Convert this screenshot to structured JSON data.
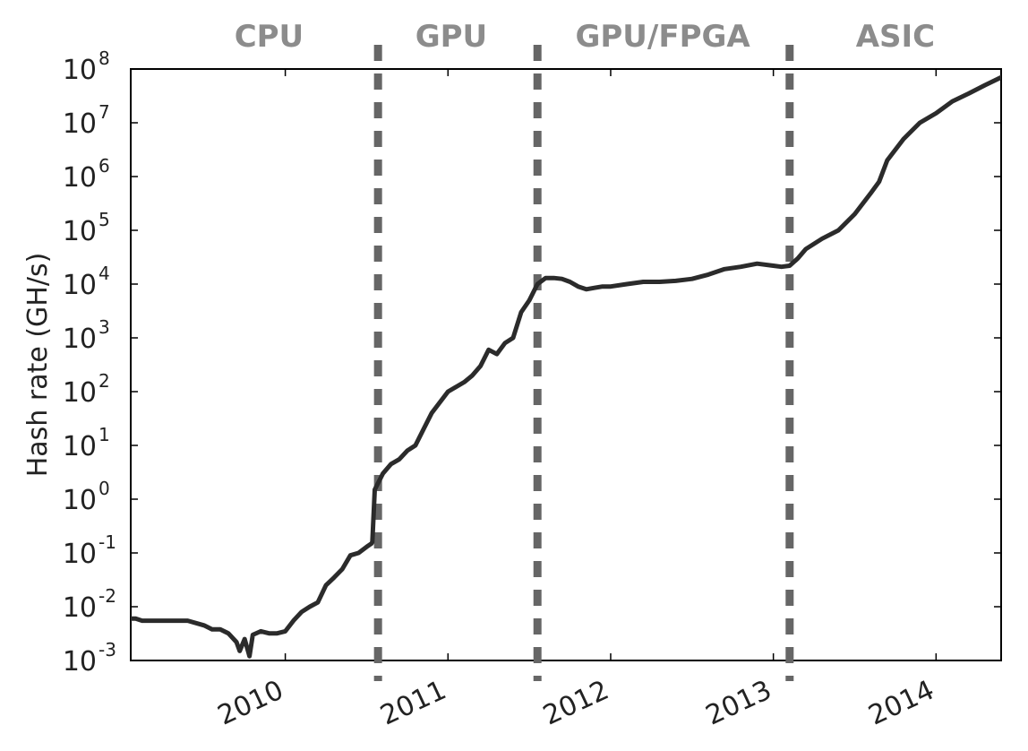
{
  "chart_data": {
    "type": "line",
    "title": "",
    "xlabel": "",
    "ylabel": "Hash rate (GH/s)",
    "yscale": "log",
    "ylim": [
      0.001,
      100000000
    ],
    "xlim": [
      2009.05,
      2014.4
    ],
    "x_ticks": [
      2010,
      2011,
      2012,
      2013,
      2014
    ],
    "x_tick_labels": [
      "2010",
      "2011",
      "2012",
      "2013",
      "2014"
    ],
    "y_ticks": [
      {
        "value": 0.001,
        "base": "10",
        "exp": "-3"
      },
      {
        "value": 0.01,
        "base": "10",
        "exp": "-2"
      },
      {
        "value": 0.1,
        "base": "10",
        "exp": "-1"
      },
      {
        "value": 1,
        "base": "10",
        "exp": "0"
      },
      {
        "value": 10,
        "base": "10",
        "exp": "1"
      },
      {
        "value": 100,
        "base": "10",
        "exp": "2"
      },
      {
        "value": 1000,
        "base": "10",
        "exp": "3"
      },
      {
        "value": 10000,
        "base": "10",
        "exp": "4"
      },
      {
        "value": 100000,
        "base": "10",
        "exp": "5"
      },
      {
        "value": 1000000,
        "base": "10",
        "exp": "6"
      },
      {
        "value": 10000000,
        "base": "10",
        "exp": "7"
      },
      {
        "value": 100000000,
        "base": "10",
        "exp": "8"
      }
    ],
    "era_dividers": [
      2010.57,
      2011.55,
      2013.1
    ],
    "eras": [
      {
        "label": "CPU",
        "center": 2009.9
      },
      {
        "label": "GPU",
        "center": 2011.02
      },
      {
        "label": "GPU/FPGA",
        "center": 2012.32
      },
      {
        "label": "ASIC",
        "center": 2013.75
      }
    ],
    "series": [
      {
        "name": "Hash rate",
        "color": "#2b2b2b",
        "x": [
          2009.0,
          2009.02,
          2009.05,
          2009.08,
          2009.12,
          2009.2,
          2009.3,
          2009.4,
          2009.5,
          2009.55,
          2009.6,
          2009.65,
          2009.7,
          2009.72,
          2009.75,
          2009.78,
          2009.8,
          2009.85,
          2009.9,
          2009.95,
          2010.0,
          2010.05,
          2010.1,
          2010.15,
          2010.2,
          2010.25,
          2010.3,
          2010.35,
          2010.4,
          2010.45,
          2010.5,
          2010.53,
          2010.535,
          2010.55,
          2010.6,
          2010.65,
          2010.7,
          2010.75,
          2010.8,
          2010.85,
          2010.9,
          2011.0,
          2011.1,
          2011.15,
          2011.2,
          2011.25,
          2011.3,
          2011.35,
          2011.4,
          2011.45,
          2011.5,
          2011.55,
          2011.6,
          2011.65,
          2011.7,
          2011.75,
          2011.8,
          2011.85,
          2011.9,
          2011.95,
          2012.0,
          2012.1,
          2012.2,
          2012.3,
          2012.4,
          2012.5,
          2012.6,
          2012.7,
          2012.8,
          2012.9,
          2013.0,
          2013.05,
          2013.1,
          2013.15,
          2013.2,
          2013.3,
          2013.4,
          2013.5,
          2013.6,
          2013.65,
          2013.7,
          2013.8,
          2013.9,
          2014.0,
          2014.1,
          2014.2,
          2014.3,
          2014.4
        ],
        "y": [
          0.002,
          0.005,
          0.006,
          0.006,
          0.0055,
          0.0055,
          0.0055,
          0.0055,
          0.0045,
          0.0038,
          0.0038,
          0.0032,
          0.0022,
          0.0015,
          0.0025,
          0.0012,
          0.003,
          0.0035,
          0.0032,
          0.0032,
          0.0035,
          0.0055,
          0.008,
          0.01,
          0.012,
          0.025,
          0.035,
          0.05,
          0.09,
          0.1,
          0.13,
          0.15,
          0.16,
          1.5,
          3.0,
          4.5,
          5.5,
          8.0,
          10,
          20,
          40,
          100,
          150,
          200,
          300,
          600,
          500,
          800,
          1000,
          3000,
          5000,
          10000,
          13000,
          13000,
          12500,
          11000,
          9000,
          8000,
          8500,
          9000,
          9000,
          10000,
          11000,
          11000,
          11500,
          12500,
          15000,
          19000,
          21000,
          24000,
          22000,
          21000,
          22000,
          30000,
          45000,
          70000,
          100000,
          200000,
          500000,
          800000,
          2000000,
          5000000,
          10000000,
          15000000,
          25000000,
          35000000,
          50000000,
          70000000
        ]
      }
    ]
  }
}
